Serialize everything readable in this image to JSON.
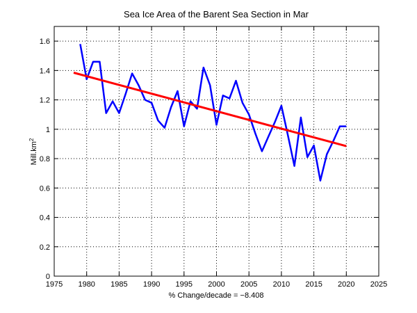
{
  "window": {
    "background": "#ffffff"
  },
  "chart_data": {
    "type": "line",
    "title": "Sea Ice Area of the Barent Sea Section in Mar",
    "xlabel": "% Change/decade = −8.408",
    "ylabel": "Mill.km",
    "ylabel_sup": "2",
    "xlim": [
      1975,
      2025
    ],
    "ylim": [
      0,
      1.7
    ],
    "xticks": [
      1975,
      1980,
      1985,
      1990,
      1995,
      2000,
      2005,
      2010,
      2015,
      2020,
      2025
    ],
    "xtick_labels": [
      "1975",
      "1980",
      "1985",
      "1990",
      "1995",
      "2000",
      "2005",
      "2010",
      "2015",
      "2020",
      "2025"
    ],
    "yticks": [
      0,
      0.2,
      0.4,
      0.6,
      0.8,
      1.0,
      1.2,
      1.4,
      1.6
    ],
    "ytick_labels": [
      "0",
      "0.2",
      "0.4",
      "0.6",
      "0.8",
      "1",
      "1.2",
      "1.4",
      "1.6"
    ],
    "grid": true,
    "grid_style": "dotted",
    "axis_color": "#000000",
    "legend": "none",
    "series": [
      {
        "name": "sea-ice-area",
        "color": "#0000ff",
        "width": 2.5,
        "x": [
          1979,
          1980,
          1981,
          1982,
          1983,
          1984,
          1985,
          1986,
          1987,
          1988,
          1989,
          1990,
          1991,
          1992,
          1993,
          1994,
          1995,
          1996,
          1997,
          1998,
          1999,
          2000,
          2001,
          2002,
          2003,
          2004,
          2005,
          2006,
          2007,
          2008,
          2009,
          2010,
          2011,
          2012,
          2013,
          2014,
          2015,
          2016,
          2017,
          2018,
          2019,
          2020
        ],
        "y": [
          1.58,
          1.34,
          1.46,
          1.46,
          1.11,
          1.19,
          1.11,
          1.24,
          1.38,
          1.3,
          1.2,
          1.18,
          1.06,
          1.01,
          1.15,
          1.26,
          1.02,
          1.19,
          1.14,
          1.42,
          1.3,
          1.03,
          1.23,
          1.21,
          1.33,
          1.18,
          1.1,
          0.97,
          0.85,
          0.95,
          1.05,
          1.16,
          0.96,
          0.75,
          1.08,
          0.81,
          0.89,
          0.65,
          0.83,
          0.92,
          1.02,
          1.02
        ]
      },
      {
        "name": "trend",
        "color": "#ff0000",
        "width": 3,
        "x": [
          1978,
          2020
        ],
        "y": [
          1.385,
          0.885
        ]
      }
    ]
  }
}
